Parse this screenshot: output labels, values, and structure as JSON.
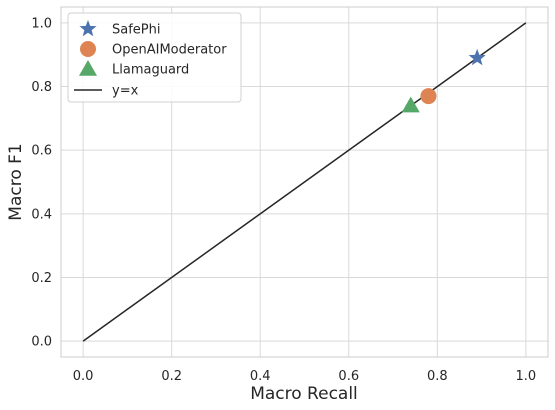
{
  "chart_data": {
    "type": "scatter",
    "title": "",
    "xlabel": "Macro Recall",
    "ylabel": "Macro F1",
    "xlim": [
      -0.05,
      1.05
    ],
    "ylim": [
      -0.05,
      1.05
    ],
    "xticks": [
      "0.0",
      "0.2",
      "0.4",
      "0.6",
      "0.8",
      "1.0"
    ],
    "yticks": [
      "0.0",
      "0.2",
      "0.4",
      "0.6",
      "0.8",
      "1.0"
    ],
    "grid": true,
    "legend_position": "top-left",
    "series": [
      {
        "name": "SafePhi",
        "marker": "star",
        "color": "#4c72b0",
        "x": 0.89,
        "y": 0.89
      },
      {
        "name": "OpenAIModerator",
        "marker": "circle",
        "color": "#dd8452",
        "x": 0.78,
        "y": 0.77
      },
      {
        "name": "Llamaguard",
        "marker": "triangle",
        "color": "#55a868",
        "x": 0.74,
        "y": 0.74
      }
    ],
    "reference_line": {
      "name": "y=x",
      "color": "#262626",
      "points": [
        [
          0,
          0
        ],
        [
          1,
          1
        ]
      ]
    }
  }
}
